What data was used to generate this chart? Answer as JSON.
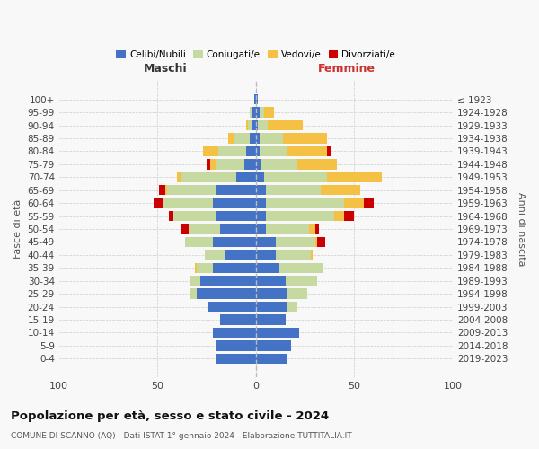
{
  "age_groups": [
    "0-4",
    "5-9",
    "10-14",
    "15-19",
    "20-24",
    "25-29",
    "30-34",
    "35-39",
    "40-44",
    "45-49",
    "50-54",
    "55-59",
    "60-64",
    "65-69",
    "70-74",
    "75-79",
    "80-84",
    "85-89",
    "90-94",
    "95-99",
    "100+"
  ],
  "birth_years": [
    "2019-2023",
    "2014-2018",
    "2009-2013",
    "2004-2008",
    "1999-2003",
    "1994-1998",
    "1989-1993",
    "1984-1988",
    "1979-1983",
    "1974-1978",
    "1969-1973",
    "1964-1968",
    "1959-1963",
    "1954-1958",
    "1949-1953",
    "1944-1948",
    "1939-1943",
    "1934-1938",
    "1929-1933",
    "1924-1928",
    "≤ 1923"
  ],
  "maschi": {
    "celibi": [
      20,
      20,
      22,
      18,
      24,
      30,
      28,
      22,
      16,
      22,
      18,
      20,
      22,
      20,
      10,
      6,
      5,
      3,
      2,
      2,
      1
    ],
    "coniugati": [
      0,
      0,
      0,
      0,
      0,
      3,
      5,
      8,
      10,
      14,
      16,
      22,
      25,
      25,
      28,
      14,
      14,
      8,
      2,
      1,
      0
    ],
    "vedovi": [
      0,
      0,
      0,
      0,
      0,
      0,
      0,
      1,
      0,
      0,
      0,
      0,
      0,
      1,
      2,
      3,
      8,
      3,
      1,
      0,
      0
    ],
    "divorziati": [
      0,
      0,
      0,
      0,
      0,
      0,
      0,
      0,
      0,
      0,
      4,
      2,
      5,
      3,
      0,
      2,
      0,
      0,
      0,
      0,
      0
    ]
  },
  "femmine": {
    "nubili": [
      16,
      18,
      22,
      15,
      16,
      16,
      15,
      12,
      10,
      10,
      5,
      5,
      5,
      5,
      4,
      3,
      2,
      2,
      1,
      2,
      1
    ],
    "coniugate": [
      0,
      0,
      0,
      0,
      5,
      10,
      16,
      22,
      18,
      20,
      22,
      35,
      40,
      28,
      32,
      18,
      14,
      12,
      5,
      2,
      0
    ],
    "vedove": [
      0,
      0,
      0,
      0,
      0,
      0,
      0,
      0,
      1,
      1,
      3,
      5,
      10,
      20,
      28,
      20,
      20,
      22,
      18,
      5,
      0
    ],
    "divorziate": [
      0,
      0,
      0,
      0,
      0,
      0,
      0,
      0,
      0,
      4,
      2,
      5,
      5,
      0,
      0,
      0,
      2,
      0,
      0,
      0,
      0
    ]
  },
  "colors": {
    "celibi": "#4472C4",
    "coniugati": "#C5D9A0",
    "vedovi": "#F4C144",
    "divorziati": "#CC0000"
  },
  "xlim": 100,
  "title": "Popolazione per età, sesso e stato civile - 2024",
  "subtitle": "COMUNE DI SCANNO (AQ) - Dati ISTAT 1° gennaio 2024 - Elaborazione TUTTITALIA.IT",
  "ylabel_left": "Fasce di età",
  "ylabel_right": "Anni di nascita",
  "xlabel_left": "Maschi",
  "xlabel_right": "Femmine",
  "maschi_color": "#333333",
  "femmine_color": "#cc3333",
  "bg_color": "#f8f8f8",
  "grid_color": "#cccccc"
}
